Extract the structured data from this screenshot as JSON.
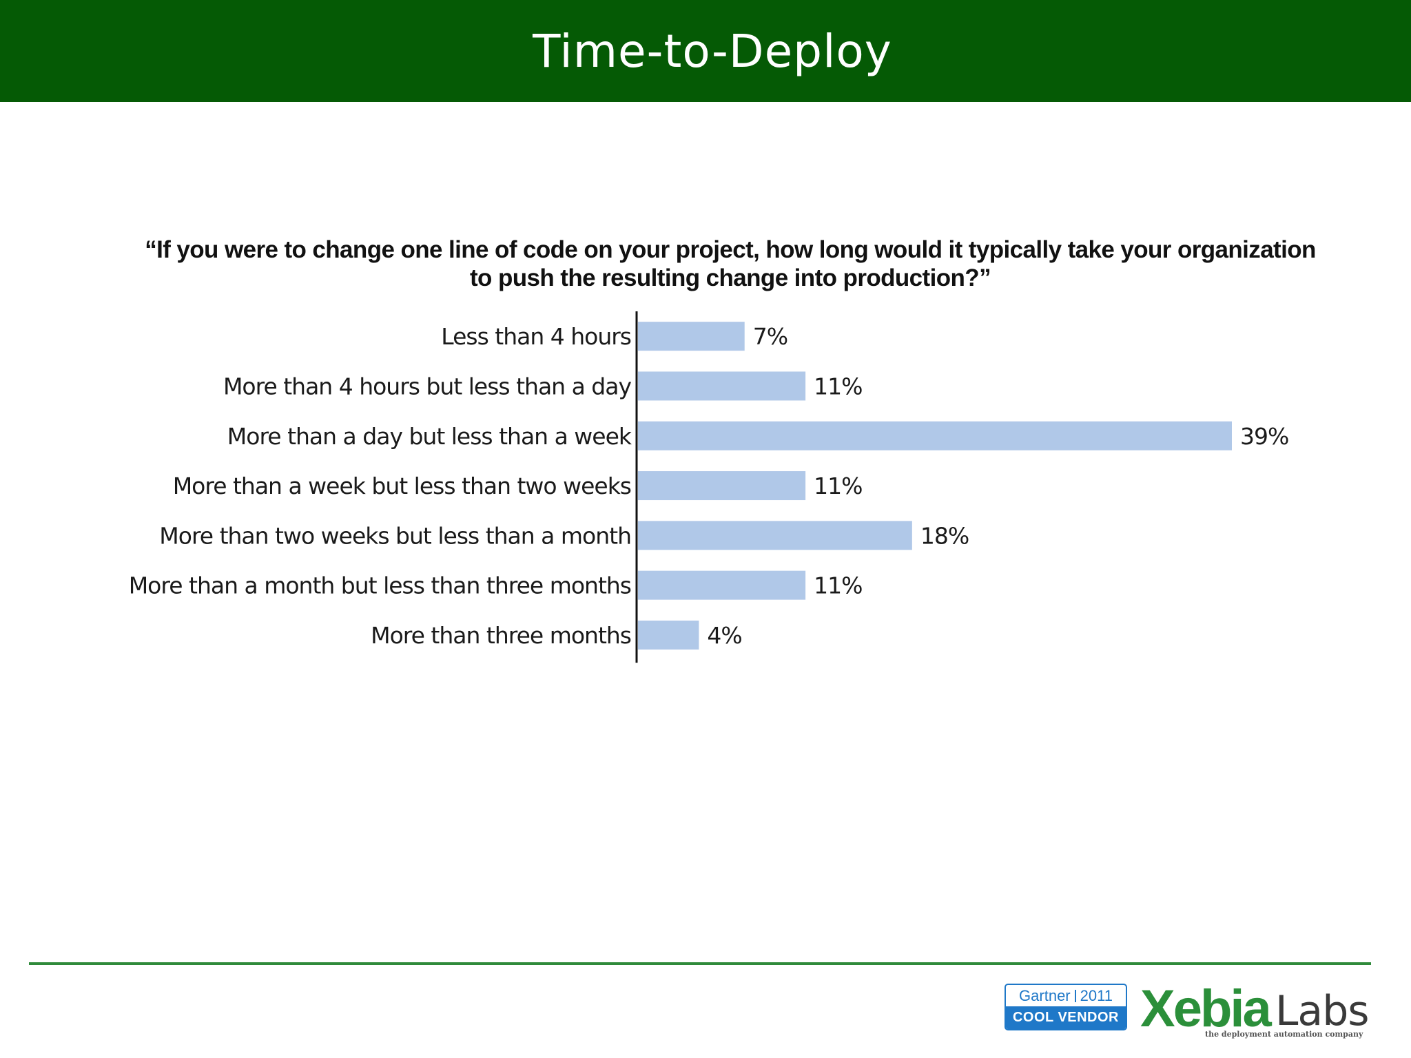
{
  "slide": {
    "title": "Time-to-Deploy"
  },
  "chart_data": {
    "type": "bar",
    "orientation": "horizontal",
    "title": "“If you were to change one line of code on your project, how long would it typically take your organization to push the resulting change into production?”",
    "categories": [
      "Less than 4 hours",
      "More than 4 hours but less than a day",
      "More than a day but less than a week",
      "More than a week but less than two weeks",
      "More than two weeks but less than a month",
      "More than a month but less than three months",
      "More than three months"
    ],
    "values": [
      7,
      11,
      39,
      11,
      18,
      11,
      4
    ],
    "value_labels": [
      "7%",
      "11%",
      "39%",
      "11%",
      "18%",
      "11%",
      "4%"
    ],
    "xlim": [
      0,
      39
    ],
    "grid": false,
    "legend": "none",
    "bar_color": "#b0c8e8"
  },
  "footer": {
    "gartner_brand": "Gartner",
    "gartner_year": "2011",
    "gartner_award": "COOL VENDOR",
    "logo_text_xebia": "Xebia",
    "logo_text_labs": "Labs",
    "logo_tagline": "the deployment automation company"
  },
  "colors": {
    "title_bar": "#055a05",
    "footer_rule": "#2f8a3a",
    "gartner_blue": "#1f78c8",
    "xebia_green": "#2b8f3a"
  }
}
